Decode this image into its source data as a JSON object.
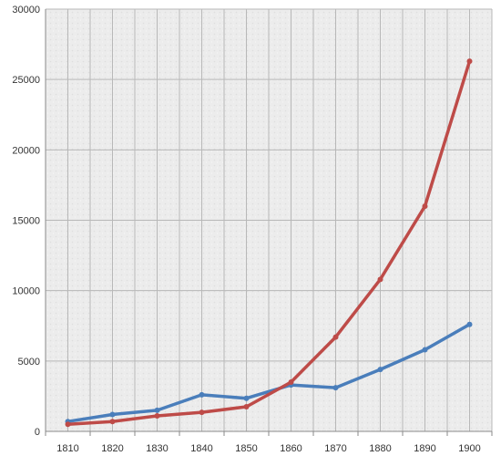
{
  "chart_data": {
    "type": "line",
    "title": "",
    "xlabel": "",
    "ylabel": "",
    "x": [
      "1810",
      "1820",
      "1830",
      "1840",
      "1850",
      "1860",
      "1870",
      "1880",
      "1890",
      "1900"
    ],
    "ylim": [
      0,
      30000
    ],
    "yticks": [
      "0",
      "5000",
      "10000",
      "15000",
      "20000",
      "25000",
      "30000"
    ],
    "grid": true,
    "legend": "none",
    "series": [
      {
        "color": "#4a7ebb",
        "values": [
          700,
          1200,
          1500,
          2600,
          2350,
          3300,
          3100,
          4400,
          5800,
          7600
        ]
      },
      {
        "color": "#be4b48",
        "values": [
          500,
          700,
          1100,
          1350,
          1750,
          3500,
          6700,
          10800,
          16000,
          26300
        ]
      }
    ],
    "plot_background": "#ebebeb"
  }
}
